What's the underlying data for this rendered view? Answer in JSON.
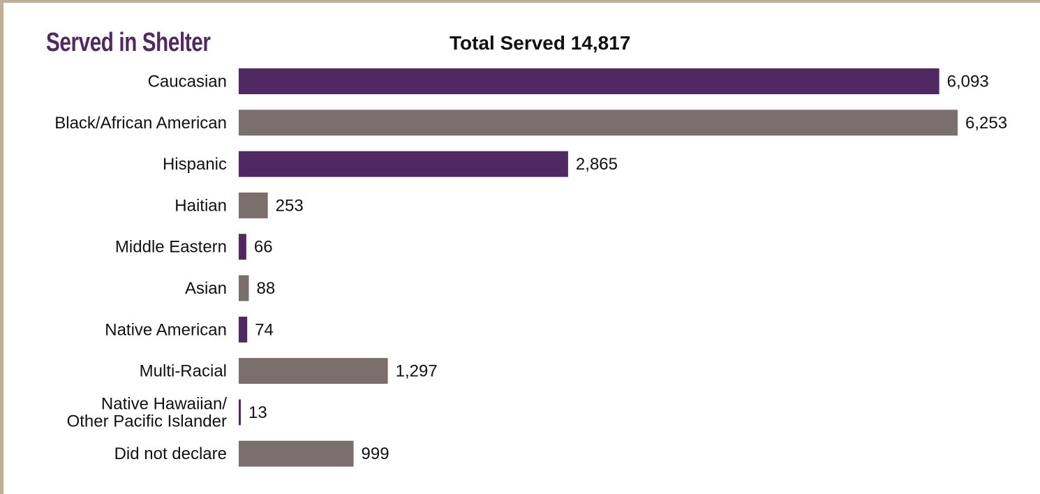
{
  "heading": "Served in Shelter",
  "chart_data": {
    "type": "bar",
    "orientation": "horizontal",
    "title": "Total Served 14,817",
    "xlabel": "",
    "ylabel": "",
    "grid": false,
    "categories": [
      [
        "Caucasian"
      ],
      [
        "Black/African American"
      ],
      [
        "Hispanic"
      ],
      [
        "Haitian"
      ],
      [
        "Middle Eastern"
      ],
      [
        "Asian"
      ],
      [
        "Native American"
      ],
      [
        "Multi-Racial"
      ],
      [
        "Native Hawaiian/",
        "Other Pacific Islander"
      ],
      [
        "Did not declare"
      ]
    ],
    "values": [
      6093,
      6253,
      2865,
      253,
      66,
      88,
      74,
      1297,
      13,
      999
    ],
    "value_labels": [
      "6,093",
      "6,253",
      "2,865",
      "253",
      "66",
      "88",
      "74",
      "1,297",
      "13",
      "999"
    ],
    "colors": [
      "#512962",
      "#7b6f6e"
    ]
  }
}
